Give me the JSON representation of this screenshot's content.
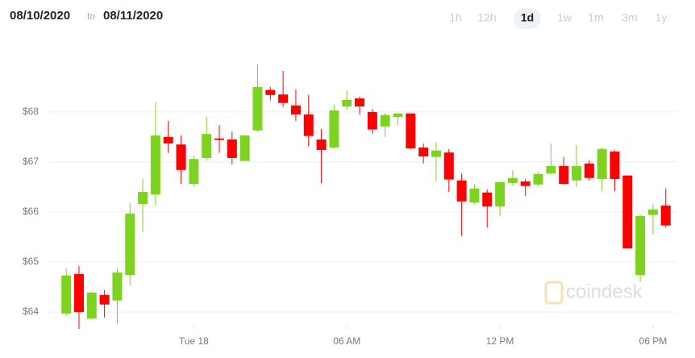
{
  "header": {
    "from": "08/10/2020",
    "to_label": "to",
    "to": "08/11/2020"
  },
  "range_buttons": {
    "options": [
      "1h",
      "12h",
      "1d",
      "1w",
      "1m",
      "3m",
      "1y"
    ],
    "selected_index": 2
  },
  "watermark": "coindesk",
  "chart_data": {
    "type": "candlestick",
    "x": [
      -5,
      -4.5,
      -4,
      -3.5,
      -3,
      -2.5,
      -2,
      -1.5,
      -1,
      -0.5,
      0,
      0.5,
      1,
      1.5,
      2,
      2.5,
      3,
      3.5,
      4,
      4.5,
      5,
      5.5,
      6,
      6.5,
      7,
      7.5,
      8,
      8.5,
      9,
      9.5,
      10,
      10.5,
      11,
      11.5,
      12,
      12.5,
      13,
      13.5,
      14,
      14.5,
      15,
      15.5,
      16,
      16.5,
      17,
      17.5,
      18,
      18.5
    ],
    "open": [
      63.97,
      64.76,
      63.87,
      64.34,
      64.23,
      64.74,
      66.16,
      66.35,
      67.5,
      67.35,
      66.56,
      67.08,
      67.47,
      67.45,
      67.02,
      67.63,
      68.44,
      68.35,
      68.13,
      67.95,
      67.45,
      67.29,
      68.11,
      68.27,
      68.0,
      67.71,
      67.9,
      67.97,
      67.29,
      67.1,
      67.19,
      66.63,
      66.19,
      66.39,
      66.11,
      66.58,
      66.61,
      66.55,
      66.77,
      66.92,
      66.63,
      66.97,
      66.66,
      67.21,
      66.73,
      64.74,
      65.94,
      66.13
    ],
    "high": [
      64.87,
      64.92,
      64.4,
      64.44,
      64.87,
      66.18,
      66.66,
      68.19,
      67.82,
      67.53,
      67.13,
      67.9,
      67.74,
      67.61,
      67.53,
      68.95,
      68.5,
      68.82,
      68.45,
      68.34,
      67.66,
      68.15,
      68.42,
      68.31,
      68.06,
      67.98,
      67.98,
      67.97,
      67.37,
      67.39,
      67.26,
      66.77,
      66.55,
      66.45,
      66.6,
      66.84,
      66.66,
      66.81,
      67.37,
      67.1,
      67.34,
      67.03,
      67.29,
      67.23,
      66.73,
      65.95,
      66.16,
      66.47
    ],
    "low": [
      63.92,
      63.66,
      63.87,
      63.89,
      63.76,
      64.52,
      65.6,
      66.13,
      67.18,
      66.56,
      66.52,
      67.03,
      67.18,
      66.95,
      67.02,
      67.6,
      68.23,
      68.1,
      67.82,
      67.31,
      66.58,
      67.26,
      68.03,
      67.94,
      67.56,
      67.5,
      67.74,
      67.26,
      66.97,
      66.61,
      66.4,
      65.52,
      66.16,
      65.69,
      65.92,
      66.52,
      66.32,
      66.52,
      66.76,
      66.55,
      66.5,
      66.63,
      66.42,
      66.42,
      65.27,
      64.61,
      65.55,
      65.69
    ],
    "close": [
      64.73,
      64.0,
      64.39,
      64.15,
      64.79,
      65.97,
      66.4,
      67.53,
      67.37,
      66.84,
      67.06,
      67.56,
      67.44,
      67.08,
      67.53,
      68.5,
      68.34,
      68.18,
      67.95,
      67.52,
      67.24,
      68.03,
      68.24,
      68.11,
      67.65,
      67.94,
      67.97,
      67.27,
      67.11,
      67.23,
      66.65,
      66.21,
      66.47,
      66.11,
      66.6,
      66.68,
      66.52,
      66.76,
      66.92,
      66.56,
      66.92,
      66.68,
      67.26,
      66.66,
      65.27,
      65.92,
      66.05,
      65.73
    ],
    "up_color": "#7ed321",
    "down_color": "#ff0000",
    "xlim": [
      -5.7,
      18.95
    ],
    "xticks": [
      {
        "value": 0,
        "label": "Tue 18"
      },
      {
        "value": 6,
        "label": "06 AM"
      },
      {
        "value": 12,
        "label": "12 PM"
      },
      {
        "value": 18,
        "label": "06 PM"
      }
    ],
    "ylim": [
      63.79,
      69.11
    ],
    "yticks": [
      {
        "value": 64,
        "label": "$64"
      },
      {
        "value": 65,
        "label": "$65"
      },
      {
        "value": 66,
        "label": "$66"
      },
      {
        "value": 67,
        "label": "$67"
      },
      {
        "value": 68,
        "label": "$68"
      }
    ],
    "grid": true
  }
}
